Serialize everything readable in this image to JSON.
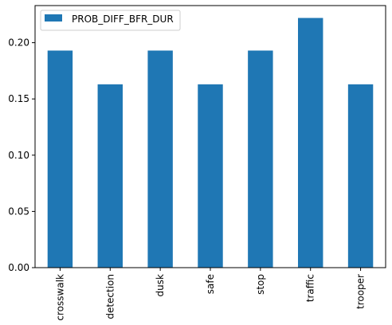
{
  "chart_data": {
    "type": "bar",
    "categories": [
      "crosswalk",
      "detection",
      "dusk",
      "safe",
      "stop",
      "traffic",
      "trooper"
    ],
    "series": [
      {
        "name": "PROB_DIFF_BFR_DUR",
        "color": "#1f77b4",
        "values": [
          0.193,
          0.163,
          0.193,
          0.163,
          0.193,
          0.222,
          0.163
        ]
      }
    ],
    "ylim": [
      0,
      0.233
    ],
    "yticks": [
      "0.00",
      "0.05",
      "0.10",
      "0.15",
      "0.20"
    ],
    "ytick_values": [
      0,
      0.05,
      0.1,
      0.15,
      0.2
    ],
    "legend_position": "top-left",
    "grid": false
  }
}
